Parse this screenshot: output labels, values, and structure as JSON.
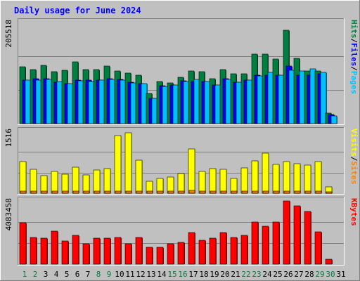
{
  "title": "Daily usage for June 2024",
  "chart_data": [
    {
      "type": "bar",
      "panel": "hits-files-pages",
      "max_label": "205518",
      "ylim": [
        0,
        205518
      ],
      "grid": true,
      "legend": "right-vertical",
      "legend_items": [
        {
          "text": "Pages",
          "color": "#00c0ff"
        },
        {
          "text": "/",
          "color": "#000000"
        },
        {
          "text": "Files",
          "color": "#0000ff"
        },
        {
          "text": "/",
          "color": "#000000"
        },
        {
          "text": "Hits",
          "color": "#008040"
        }
      ],
      "categories": [
        "1",
        "2",
        "3",
        "4",
        "5",
        "6",
        "7",
        "8",
        "9",
        "10",
        "11",
        "12",
        "13",
        "14",
        "15",
        "16",
        "17",
        "18",
        "19",
        "20",
        "21",
        "22",
        "23",
        "24",
        "25",
        "26",
        "27",
        "28",
        "29",
        "30",
        "31"
      ],
      "series": [
        {
          "name": "Hits",
          "color": "#008040",
          "values": [
            115000,
            110000,
            119000,
            105000,
            108000,
            125000,
            110000,
            110000,
            117000,
            107000,
            103000,
            98000,
            61000,
            86000,
            83000,
            94000,
            107000,
            106000,
            92000,
            110000,
            102000,
            102000,
            142000,
            141000,
            132000,
            190000,
            133000,
            107000,
            107000,
            22000,
            0
          ]
        },
        {
          "name": "Files",
          "color": "#0000ff",
          "values": [
            89000,
            92000,
            92000,
            84000,
            82000,
            88000,
            88000,
            89000,
            91000,
            90000,
            84000,
            82000,
            52000,
            77000,
            78000,
            87000,
            86000,
            85000,
            78000,
            91000,
            84000,
            89000,
            98000,
            99000,
            98000,
            117000,
            98000,
            99000,
            101000,
            18000,
            0
          ]
        },
        {
          "name": "Pages",
          "color": "#00c0ff",
          "values": [
            88000,
            89000,
            90000,
            86000,
            81000,
            87000,
            86000,
            89000,
            90000,
            88000,
            83000,
            81000,
            51000,
            76000,
            78000,
            86000,
            90000,
            86000,
            79000,
            90000,
            84000,
            88000,
            97000,
            104000,
            98000,
            108000,
            107000,
            111000,
            104000,
            16000,
            0
          ]
        }
      ]
    },
    {
      "type": "bar",
      "panel": "visits-sites",
      "max_label": "1516",
      "ylim": [
        0,
        1516
      ],
      "grid": true,
      "legend": "right-vertical",
      "legend_items": [
        {
          "text": "Sites",
          "color": "#ff8000"
        },
        {
          "text": "/",
          "color": "#000000"
        },
        {
          "text": "Visits",
          "color": "#ffff00"
        }
      ],
      "categories": [
        "1",
        "2",
        "3",
        "4",
        "5",
        "6",
        "7",
        "8",
        "9",
        "10",
        "11",
        "12",
        "13",
        "14",
        "15",
        "16",
        "17",
        "18",
        "19",
        "20",
        "21",
        "22",
        "23",
        "24",
        "25",
        "26",
        "27",
        "28",
        "29",
        "30",
        "31"
      ],
      "series": [
        {
          "name": "Visits",
          "color": "#ffff00",
          "values": [
            780,
            580,
            430,
            540,
            470,
            640,
            450,
            570,
            610,
            1420,
            1480,
            810,
            300,
            370,
            400,
            490,
            1080,
            540,
            610,
            580,
            370,
            620,
            800,
            990,
            710,
            770,
            720,
            690,
            780,
            160,
            0
          ]
        },
        {
          "name": "Sites",
          "color": "#ff8000",
          "values": [
            60,
            60,
            60,
            60,
            60,
            60,
            60,
            60,
            60,
            60,
            60,
            60,
            60,
            60,
            60,
            60,
            75,
            60,
            60,
            60,
            60,
            60,
            60,
            60,
            60,
            60,
            60,
            60,
            60,
            30,
            0
          ]
        }
      ]
    },
    {
      "type": "bar",
      "panel": "kbytes",
      "max_label": "4083458",
      "ylim": [
        0,
        4083458
      ],
      "grid": true,
      "legend": "right-vertical",
      "legend_items": [
        {
          "text": "KBytes",
          "color": "#ff0000"
        }
      ],
      "categories": [
        "1",
        "2",
        "3",
        "4",
        "5",
        "6",
        "7",
        "8",
        "9",
        "10",
        "11",
        "12",
        "13",
        "14",
        "15",
        "16",
        "17",
        "18",
        "19",
        "20",
        "21",
        "22",
        "23",
        "24",
        "25",
        "26",
        "27",
        "28",
        "29",
        "30",
        "31"
      ],
      "series": [
        {
          "name": "KBytes",
          "color": "#ff0000",
          "values": [
            2680000,
            1740000,
            1680000,
            2150000,
            1480000,
            1880000,
            1300000,
            1680000,
            1680000,
            1740000,
            1300000,
            1740000,
            1080000,
            1080000,
            1300000,
            1400000,
            2050000,
            1550000,
            1700000,
            2030000,
            1740000,
            1880000,
            2700000,
            2470000,
            2700000,
            4083458,
            3780000,
            3420000,
            2100000,
            300000,
            0
          ]
        }
      ]
    }
  ],
  "x_axis": {
    "labels": [
      "1",
      "2",
      "3",
      "4",
      "5",
      "6",
      "7",
      "8",
      "9",
      "10",
      "11",
      "12",
      "13",
      "14",
      "15",
      "16",
      "17",
      "18",
      "19",
      "20",
      "21",
      "22",
      "23",
      "24",
      "25",
      "26",
      "27",
      "28",
      "29",
      "30",
      "31"
    ],
    "weekend_color": "#008040",
    "weekday_color": "#000000",
    "weekend_days": [
      "1",
      "2",
      "8",
      "9",
      "15",
      "16",
      "22",
      "23",
      "29",
      "30"
    ]
  }
}
